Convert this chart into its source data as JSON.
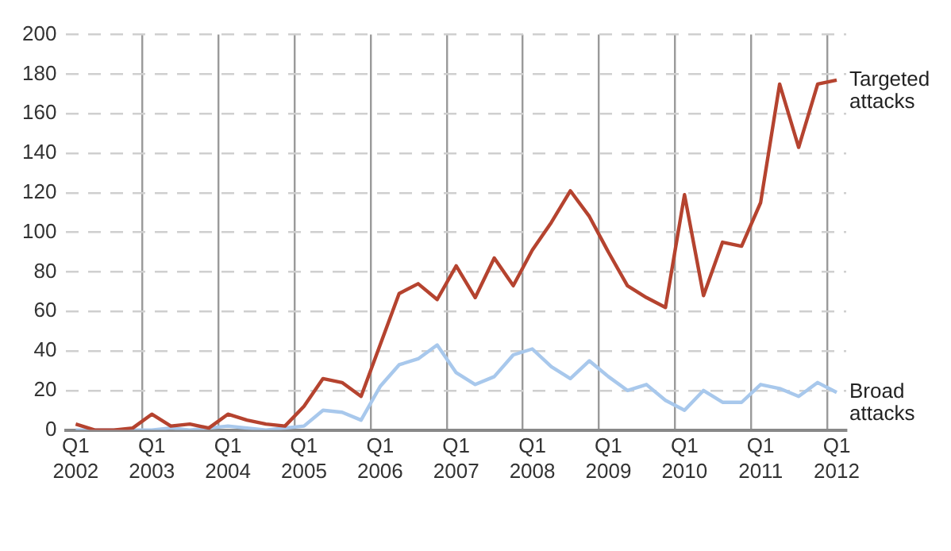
{
  "chart_data": {
    "type": "line",
    "categories": [
      "Q1 2002",
      null,
      null,
      null,
      "Q1 2003",
      null,
      null,
      null,
      "Q1 2004",
      null,
      null,
      null,
      "Q1 2005",
      null,
      null,
      null,
      "Q1 2006",
      null,
      null,
      null,
      "Q1 2007",
      null,
      null,
      null,
      "Q1 2008",
      null,
      null,
      null,
      "Q1 2009",
      null,
      null,
      null,
      "Q1 2010",
      null,
      null,
      null,
      "Q1 2011",
      null,
      null,
      null,
      "Q1 2012"
    ],
    "series": [
      {
        "name": "Targeted attacks",
        "color": "#b5432f",
        "values": [
          3,
          0,
          0,
          1,
          8,
          2,
          3,
          1,
          8,
          5,
          3,
          2,
          12,
          26,
          24,
          17,
          43,
          69,
          74,
          66,
          83,
          67,
          87,
          73,
          91,
          105,
          121,
          108,
          90,
          73,
          67,
          62,
          119,
          68,
          95,
          93,
          115,
          175,
          143,
          175,
          177
        ]
      },
      {
        "name": "Broad attacks",
        "color": "#a8c8ec",
        "values": [
          0,
          0,
          0,
          0,
          0,
          1,
          0,
          1,
          2,
          1,
          0,
          1,
          2,
          10,
          9,
          5,
          22,
          33,
          36,
          43,
          29,
          23,
          27,
          38,
          41,
          32,
          26,
          35,
          27,
          20,
          23,
          15,
          10,
          20,
          14,
          14,
          23,
          21,
          17,
          24,
          19
        ]
      }
    ],
    "ylim": [
      0,
      200
    ],
    "yticks": [
      0,
      20,
      40,
      60,
      80,
      100,
      120,
      140,
      160,
      180,
      200
    ],
    "grid": true,
    "legend": false,
    "marker": "none",
    "line_style": "solid"
  }
}
